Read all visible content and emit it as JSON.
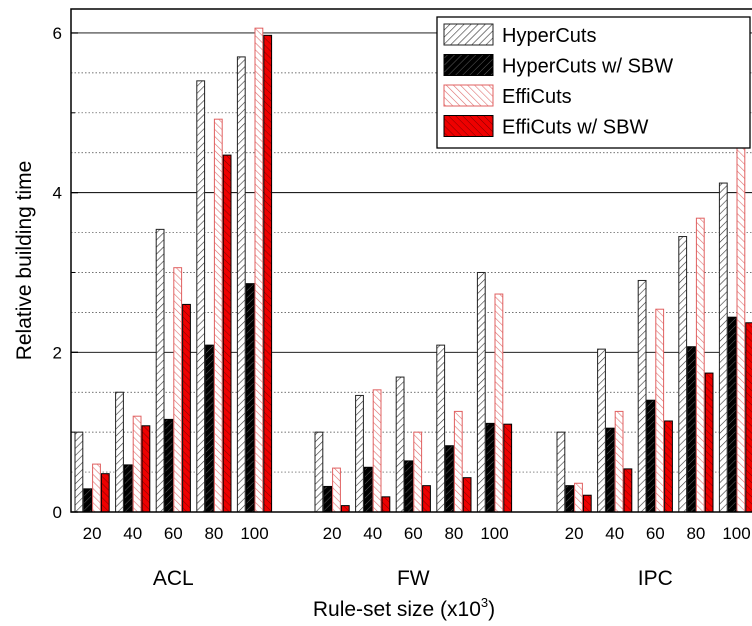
{
  "chart_data": {
    "type": "bar",
    "groups": [
      "ACL",
      "FW",
      "IPC"
    ],
    "categories": [
      "20",
      "40",
      "60",
      "80",
      "100"
    ],
    "series": [
      {
        "name": "HyperCuts",
        "fill": "#ffffff",
        "stroke": "#222222",
        "hatch": "#333333",
        "values": [
          [
            1.0,
            1.5,
            3.54,
            5.4,
            5.7
          ],
          [
            1.0,
            1.46,
            1.69,
            2.09,
            3.0
          ],
          [
            1.0,
            2.04,
            2.9,
            3.45,
            4.12
          ]
        ]
      },
      {
        "name": "HyperCuts w/ SBW",
        "fill": "#000000",
        "stroke": "#000000",
        "hatch": "#ffffff",
        "values": [
          [
            0.29,
            0.59,
            1.16,
            2.09,
            2.86
          ],
          [
            0.32,
            0.56,
            0.64,
            0.83,
            1.11
          ],
          [
            0.33,
            1.05,
            1.4,
            2.07,
            2.44
          ]
        ]
      },
      {
        "name": "EffiCuts",
        "fill": "#ffffff",
        "stroke": "#e06060",
        "hatch": "#e07070",
        "values": [
          [
            0.6,
            1.2,
            3.06,
            4.92,
            6.06
          ],
          [
            0.55,
            1.53,
            1.0,
            1.26,
            2.73
          ],
          [
            0.36,
            1.26,
            2.54,
            3.68,
            5.4
          ]
        ]
      },
      {
        "name": "EffiCuts w/ SBW",
        "fill": "#ee0000",
        "stroke": "#000000",
        "hatch": "#550000",
        "values": [
          [
            0.48,
            1.08,
            2.6,
            4.47,
            5.97
          ],
          [
            0.08,
            0.19,
            0.33,
            0.43,
            1.1
          ],
          [
            0.21,
            0.54,
            1.14,
            1.74,
            2.37
          ]
        ]
      }
    ],
    "xlabel": "Rule-set size (x10",
    "xlabel_sup": "3",
    "xlabel_end": ")",
    "ylabel": "Relative building time",
    "ylim": [
      0,
      6.3
    ],
    "yticks": [
      "0",
      "2",
      "4",
      "6"
    ],
    "grid": true,
    "legend_position": "top-right"
  }
}
